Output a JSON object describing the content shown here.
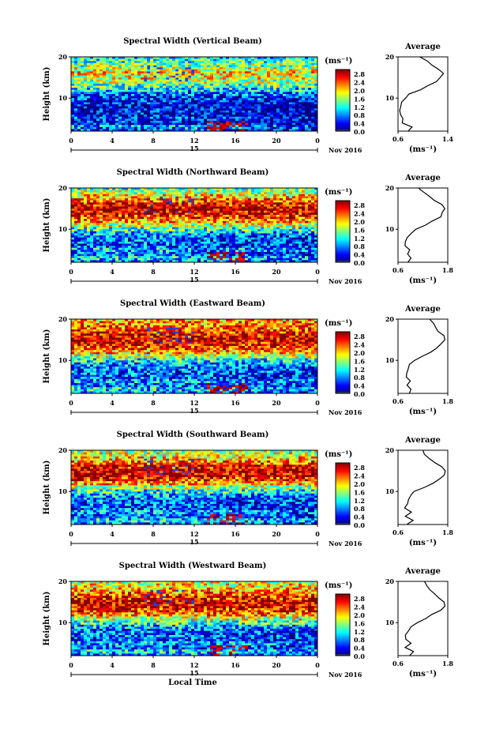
{
  "chart_data": [
    {
      "type": "heatmap",
      "title": "Spectral Width (Vertical Beam)",
      "ylabel": "Height (km)",
      "xlabel": "",
      "xticks": [
        "0",
        "4",
        "8",
        "12",
        "16",
        "20",
        "0"
      ],
      "yticks": [
        "10",
        "20"
      ],
      "date_label": "15",
      "month_label": "Nov 2016",
      "xlim": [
        0,
        24
      ],
      "ylim": [
        2,
        20
      ],
      "colorbar": {
        "unit_label": "(ms⁻¹)",
        "ticks": [
          "0.0",
          "0.4",
          "0.8",
          "1.2",
          "1.6",
          "2.0",
          "2.4",
          "2.8"
        ],
        "range": [
          0,
          3.0
        ]
      },
      "average_profile": {
        "title": "Average",
        "xlabel": "(ms⁻¹)",
        "xticks": [
          "0.6",
          "1.4"
        ],
        "xlim": [
          0.6,
          1.4
        ],
        "yticks": [
          "10",
          "20"
        ],
        "height_km": [
          2,
          3,
          4,
          5,
          6,
          7,
          8,
          9,
          10,
          11,
          12,
          13,
          14,
          15,
          16,
          17,
          18,
          19,
          20
        ],
        "width_ms": [
          0.75,
          0.85,
          0.65,
          0.7,
          0.62,
          0.65,
          0.63,
          0.66,
          0.7,
          0.8,
          0.95,
          1.1,
          1.2,
          1.3,
          1.35,
          1.25,
          1.15,
          1.05,
          0.95
        ]
      }
    },
    {
      "type": "heatmap",
      "title": "Spectral Width (Northward Beam)",
      "ylabel": "Height (km)",
      "xlabel": "",
      "xticks": [
        "0",
        "4",
        "8",
        "12",
        "16",
        "20",
        "0"
      ],
      "yticks": [
        "10",
        "20"
      ],
      "date_label": "15",
      "month_label": "Nov 2016",
      "xlim": [
        0,
        24
      ],
      "ylim": [
        2,
        20
      ],
      "colorbar": {
        "unit_label": "(ms⁻¹)",
        "ticks": [
          "0.0",
          "0.4",
          "0.8",
          "1.2",
          "1.6",
          "2.0",
          "2.4",
          "2.8"
        ],
        "range": [
          0,
          3.0
        ]
      },
      "average_profile": {
        "title": "Average",
        "xlabel": "(ms⁻¹)",
        "xticks": [
          "0.6",
          "1.8"
        ],
        "xlim": [
          0.6,
          1.8
        ],
        "yticks": [
          "10",
          "20"
        ],
        "height_km": [
          2,
          3,
          4,
          5,
          6,
          7,
          8,
          9,
          10,
          11,
          12,
          13,
          14,
          15,
          16,
          17,
          18,
          19,
          20
        ],
        "width_ms": [
          0.85,
          0.95,
          0.8,
          0.9,
          0.78,
          0.8,
          0.82,
          0.9,
          1.05,
          1.25,
          1.45,
          1.6,
          1.7,
          1.75,
          1.65,
          1.5,
          1.35,
          1.2,
          1.1
        ]
      }
    },
    {
      "type": "heatmap",
      "title": "Spectral Width (Eastward Beam)",
      "ylabel": "Height (km)",
      "xlabel": "",
      "xticks": [
        "0",
        "4",
        "8",
        "12",
        "16",
        "20",
        "0"
      ],
      "yticks": [
        "10",
        "20"
      ],
      "date_label": "15",
      "month_label": "Nov 2016",
      "xlim": [
        0,
        24
      ],
      "ylim": [
        2,
        20
      ],
      "colorbar": {
        "unit_label": "(ms⁻¹)",
        "ticks": [
          "0.0",
          "0.4",
          "0.8",
          "1.2",
          "1.6",
          "2.0",
          "2.4",
          "2.8"
        ],
        "range": [
          0,
          3.0
        ]
      },
      "average_profile": {
        "title": "Average",
        "xlabel": "(ms⁻¹)",
        "xticks": [
          "0.6",
          "1.8"
        ],
        "xlim": [
          0.6,
          1.8
        ],
        "yticks": [
          "10",
          "20"
        ],
        "height_km": [
          2,
          3,
          4,
          5,
          6,
          7,
          8,
          9,
          10,
          11,
          12,
          13,
          14,
          15,
          16,
          17,
          18,
          19,
          20
        ],
        "width_ms": [
          0.85,
          0.95,
          0.8,
          0.88,
          0.78,
          0.8,
          0.82,
          0.88,
          1.0,
          1.2,
          1.4,
          1.55,
          1.65,
          1.72,
          1.68,
          1.6,
          1.5,
          1.45,
          1.4
        ]
      }
    },
    {
      "type": "heatmap",
      "title": "Spectral Width (Southward Beam)",
      "ylabel": "Height (km)",
      "xlabel": "",
      "xticks": [
        "0",
        "4",
        "8",
        "12",
        "16",
        "20",
        "0"
      ],
      "yticks": [
        "10",
        "20"
      ],
      "date_label": "15",
      "month_label": "Nov 2016",
      "xlim": [
        0,
        24
      ],
      "ylim": [
        2,
        20
      ],
      "colorbar": {
        "unit_label": "(ms⁻¹)",
        "ticks": [
          "0.0",
          "0.4",
          "0.8",
          "1.2",
          "1.6",
          "2.0",
          "2.4",
          "2.8"
        ],
        "range": [
          0,
          3.0
        ]
      },
      "average_profile": {
        "title": "Average",
        "xlabel": "(ms⁻¹)",
        "xticks": [
          "0.6",
          "1.8"
        ],
        "xlim": [
          0.6,
          1.8
        ],
        "yticks": [
          "10",
          "20"
        ],
        "height_km": [
          2,
          3,
          4,
          5,
          6,
          7,
          8,
          9,
          10,
          11,
          12,
          13,
          14,
          15,
          16,
          17,
          18,
          19,
          20
        ],
        "width_ms": [
          0.85,
          0.95,
          0.8,
          0.9,
          0.78,
          0.8,
          0.82,
          0.88,
          1.0,
          1.2,
          1.42,
          1.6,
          1.72,
          1.75,
          1.65,
          1.5,
          1.35,
          1.25,
          1.2
        ]
      }
    },
    {
      "type": "heatmap",
      "title": "Spectral Width (Westward Beam)",
      "ylabel": "Height (km)",
      "xlabel": "Local Time",
      "xticks": [
        "0",
        "4",
        "8",
        "12",
        "16",
        "20",
        "0"
      ],
      "yticks": [
        "10",
        "20"
      ],
      "date_label": "15",
      "month_label": "Nov 2016",
      "xlim": [
        0,
        24
      ],
      "ylim": [
        2,
        20
      ],
      "colorbar": {
        "unit_label": "(ms⁻¹)",
        "ticks": [
          "0.0",
          "0.4",
          "0.8",
          "1.2",
          "1.6",
          "2.0",
          "2.4",
          "2.8"
        ],
        "range": [
          0,
          3.0
        ]
      },
      "average_profile": {
        "title": "Average",
        "xlabel": "(ms⁻¹)",
        "xticks": [
          "0.6",
          "1.8"
        ],
        "xlim": [
          0.6,
          1.8
        ],
        "yticks": [
          "10",
          "20"
        ],
        "height_km": [
          2,
          3,
          4,
          5,
          6,
          7,
          8,
          9,
          10,
          11,
          12,
          13,
          14,
          15,
          16,
          17,
          18,
          19,
          20
        ],
        "width_ms": [
          0.85,
          0.95,
          0.8,
          0.9,
          0.78,
          0.8,
          0.82,
          0.9,
          1.05,
          1.25,
          1.45,
          1.6,
          1.7,
          1.72,
          1.62,
          1.5,
          1.4,
          1.3,
          1.25
        ]
      }
    }
  ]
}
